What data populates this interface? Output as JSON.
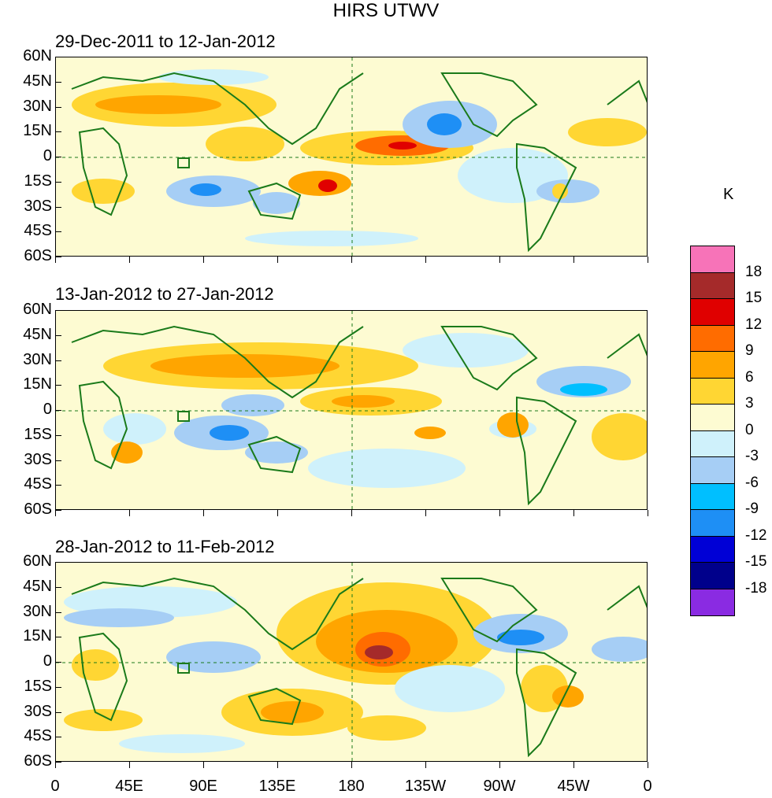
{
  "title": "HIRS UTWV",
  "units": "K",
  "lat_labels": [
    "60N",
    "45N",
    "30N",
    "15N",
    "0",
    "15S",
    "30S",
    "45S",
    "60S"
  ],
  "lon_labels": [
    "0",
    "45E",
    "90E",
    "135E",
    "180",
    "135W",
    "90W",
    "45W",
    "0"
  ],
  "panels": [
    {
      "date_range": "29-Dec-2011 to 12-Jan-2012"
    },
    {
      "date_range": "13-Jan-2012 to 27-Jan-2012"
    },
    {
      "date_range": "28-Jan-2012 to 11-Feb-2012"
    }
  ],
  "colorbar": {
    "labels": [
      "18",
      "15",
      "12",
      "9",
      "6",
      "3",
      "0",
      "-3",
      "-6",
      "-9",
      "-12",
      "-15",
      "-18"
    ],
    "colors": [
      "#f773b8",
      "#a52a2a",
      "#e00000",
      "#ff6c00",
      "#ffa500",
      "#ffd633",
      "#fdfbd2",
      "#cff1fb",
      "#a6cef5",
      "#00bfff",
      "#1e8ff5",
      "#0000d6",
      "#00008b",
      "#8a2be2"
    ]
  },
  "colors": {
    "coast": "#1a7a1a",
    "background": "#fdfbd2"
  }
}
